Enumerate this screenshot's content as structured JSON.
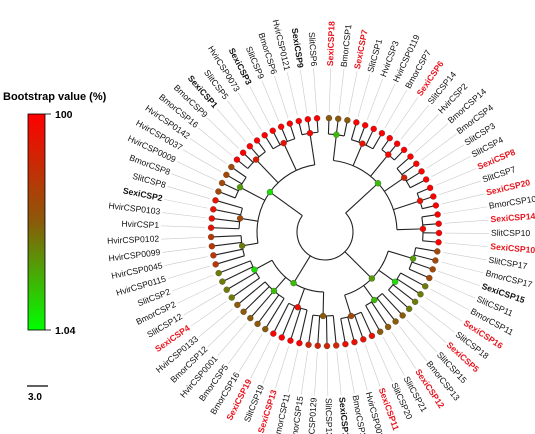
{
  "legend": {
    "title": "Bootstrap value (%)",
    "max_label": "100",
    "min_label": "1.04",
    "color_high": "#ff0000",
    "color_mid": "#8b5a0a",
    "color_low": "#00ff00"
  },
  "scale_bar": {
    "label": "3.0"
  },
  "colors": {
    "highlight": "#e8141e",
    "normal": "#111111",
    "branch": "#222222"
  },
  "leaves": [
    {
      "name": "SexiCSP18",
      "style": "red"
    },
    {
      "name": "BmorCSP1",
      "style": "normal"
    },
    {
      "name": "SexiCSP7",
      "style": "red"
    },
    {
      "name": "SlitCSP1",
      "style": "normal"
    },
    {
      "name": "HvirCSP3",
      "style": "normal"
    },
    {
      "name": "HvirCSP0119",
      "style": "normal"
    },
    {
      "name": "BmorCSP7",
      "style": "normal"
    },
    {
      "name": "SexiCSP6",
      "style": "red"
    },
    {
      "name": "SlitCSP14",
      "style": "normal"
    },
    {
      "name": "HvirCSP2",
      "style": "normal"
    },
    {
      "name": "BmorCSP14",
      "style": "normal"
    },
    {
      "name": "BmorCSP4",
      "style": "normal"
    },
    {
      "name": "SlitCSP3",
      "style": "normal"
    },
    {
      "name": "SlitCSP4",
      "style": "normal"
    },
    {
      "name": "SexiCSP8",
      "style": "red"
    },
    {
      "name": "SlitCSP7",
      "style": "normal"
    },
    {
      "name": "SexiCSP20",
      "style": "red"
    },
    {
      "name": "BmorCSP10",
      "style": "normal"
    },
    {
      "name": "SexiCSP14",
      "style": "red"
    },
    {
      "name": "SlitCSP10",
      "style": "normal"
    },
    {
      "name": "SexiCSP10",
      "style": "red"
    },
    {
      "name": "SlitCSP17",
      "style": "normal"
    },
    {
      "name": "BmorCSP17",
      "style": "normal"
    },
    {
      "name": "SexiCSP15",
      "style": "bold"
    },
    {
      "name": "SlitCSP11",
      "style": "normal"
    },
    {
      "name": "BmorCSP11",
      "style": "normal"
    },
    {
      "name": "SexiCSP16",
      "style": "red"
    },
    {
      "name": "SlitCSP18",
      "style": "normal"
    },
    {
      "name": "SexiCSP5",
      "style": "red"
    },
    {
      "name": "SlitCSP15",
      "style": "normal"
    },
    {
      "name": "BmorCSP13",
      "style": "normal"
    },
    {
      "name": "SexiCSP12",
      "style": "red"
    },
    {
      "name": "SlitCSP21",
      "style": "normal"
    },
    {
      "name": "SlitCSP20",
      "style": "normal"
    },
    {
      "name": "SexiCSP11",
      "style": "red"
    },
    {
      "name": "HvirCSP0029",
      "style": "normal"
    },
    {
      "name": "BmorCSP3",
      "style": "normal"
    },
    {
      "name": "SexiCSP17",
      "style": "bold"
    },
    {
      "name": "SlitCSP13",
      "style": "normal"
    },
    {
      "name": "HvirCSP0129",
      "style": "normal"
    },
    {
      "name": "BmorCSP15",
      "style": "normal"
    },
    {
      "name": "BmorCSP11",
      "style": "normal"
    },
    {
      "name": "SexiCSP13",
      "style": "red"
    },
    {
      "name": "SlitCSP19",
      "style": "normal"
    },
    {
      "name": "SexiCSP19",
      "style": "red"
    },
    {
      "name": "BmorCSP16",
      "style": "normal"
    },
    {
      "name": "BmorCSP5",
      "style": "normal"
    },
    {
      "name": "HvirCSP0001",
      "style": "normal"
    },
    {
      "name": "BmorCSP12",
      "style": "normal"
    },
    {
      "name": "HvirCSP0133",
      "style": "normal"
    },
    {
      "name": "SexiCSP4",
      "style": "red"
    },
    {
      "name": "SlitCSP12",
      "style": "normal"
    },
    {
      "name": "BmorCSP2",
      "style": "normal"
    },
    {
      "name": "SlitCSP2",
      "style": "normal"
    },
    {
      "name": "HvirCSP0115",
      "style": "normal"
    },
    {
      "name": "HvirCSP0045",
      "style": "normal"
    },
    {
      "name": "HvirCSP0099",
      "style": "normal"
    },
    {
      "name": "HvirCSP0102",
      "style": "normal"
    },
    {
      "name": "HvirCSP1",
      "style": "normal"
    },
    {
      "name": "HvirCSP0103",
      "style": "normal"
    },
    {
      "name": "SexiCSP2",
      "style": "bold"
    },
    {
      "name": "SlitCSP8",
      "style": "normal"
    },
    {
      "name": "BmorCSP8",
      "style": "normal"
    },
    {
      "name": "HvirCSP0009",
      "style": "normal"
    },
    {
      "name": "HvirCSP0037",
      "style": "normal"
    },
    {
      "name": "HvirCSP0142",
      "style": "normal"
    },
    {
      "name": "BmorCSP16",
      "style": "normal"
    },
    {
      "name": "BmorCSP9",
      "style": "normal"
    },
    {
      "name": "SexiCSP1",
      "style": "bold"
    },
    {
      "name": "SlitCSP5",
      "style": "normal"
    },
    {
      "name": "HvirCSP0073",
      "style": "normal"
    },
    {
      "name": "SexiCSP3",
      "style": "bold"
    },
    {
      "name": "SlitCSP9",
      "style": "normal"
    },
    {
      "name": "BmorCSP6",
      "style": "normal"
    },
    {
      "name": "HvirCSP0121",
      "style": "normal"
    },
    {
      "name": "SexiCSP9",
      "style": "bold"
    },
    {
      "name": "SlitCSP6",
      "style": "normal"
    }
  ]
}
